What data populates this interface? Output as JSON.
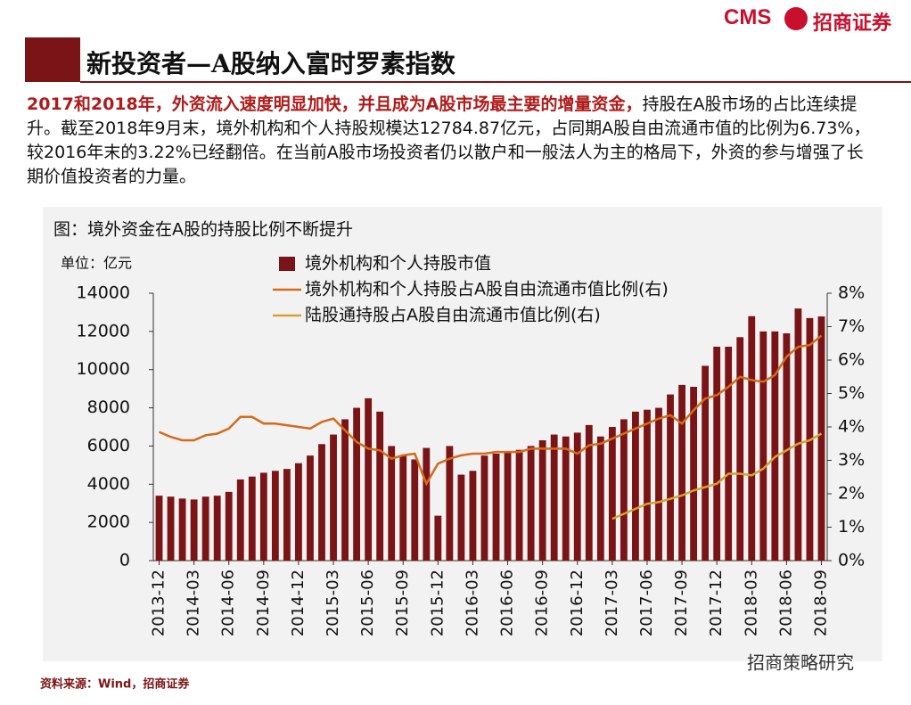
{
  "header": {
    "logo": "CMS",
    "company": "招商证券",
    "title": "新投资者—A股纳入富时罗素指数"
  },
  "paragraph": {
    "lead": "2017和2018年，外资流入速度明显加快，并且成为A股市场最主要的增量资金，",
    "body": "持股在A股市场的占比连续提升。截至2018年9月末，境外机构和个人持股规模达12784.87亿元，占同期A股自由流通市值的比例为6.73%，较2016年末的3.22%已经翻倍。在当前A股市场投资者仍以散户和一般法人为主的格局下，外资的参与增强了长期价值投资者的力量。"
  },
  "chart_data": {
    "type": "bar-line",
    "title": "图：境外资金在A股的持股比例不断提升",
    "y_label": "单位：亿元",
    "categories": [
      "2013-12",
      null,
      null,
      "2014-03",
      null,
      null,
      "2014-06",
      null,
      null,
      "2014-09",
      null,
      null,
      "2014-12",
      null,
      null,
      "2015-03",
      null,
      null,
      "2015-06",
      null,
      null,
      "2015-09",
      null,
      null,
      "2015-12",
      null,
      null,
      "2016-03",
      null,
      null,
      "2016-06",
      null,
      null,
      "2016-09",
      null,
      null,
      "2016-12",
      null,
      null,
      "2017-03",
      null,
      null,
      "2017-06",
      null,
      null,
      "2017-09",
      null,
      null,
      "2017-12",
      null,
      null,
      "2018-03",
      null,
      null,
      "2018-06",
      null,
      null,
      "2018-09"
    ],
    "series": [
      {
        "name": "境外机构和个人持股市值",
        "color": "#7b1416",
        "kind": "bar",
        "values": [
          3400,
          3350,
          3250,
          3200,
          3350,
          3400,
          3600,
          4250,
          4400,
          4600,
          4700,
          4800,
          5100,
          5500,
          6100,
          6600,
          7400,
          8000,
          8500,
          7800,
          6000,
          5500,
          5300,
          5900,
          2350,
          6000,
          4500,
          4700,
          5500,
          5600,
          5700,
          5800,
          6000,
          6300,
          6600,
          6500,
          6700,
          7100,
          6500,
          7000,
          7400,
          7800,
          7900,
          8000,
          8700,
          9200,
          9100,
          10200,
          11200,
          11200,
          11700,
          12800,
          12000,
          12000,
          11900,
          13200,
          12700,
          12784.87
        ]
      },
      {
        "name": "境外机构和个人持股占A股自由流通市值比例(右)",
        "color": "#d46a1a",
        "kind": "line",
        "axis": "y2",
        "values": [
          3.85,
          3.7,
          3.6,
          3.6,
          3.75,
          3.8,
          3.95,
          4.3,
          4.3,
          4.1,
          4.1,
          4.05,
          4.0,
          3.95,
          4.15,
          4.25,
          3.9,
          3.55,
          3.35,
          3.3,
          3.05,
          3.15,
          3.2,
          2.3,
          2.9,
          3.05,
          3.15,
          3.2,
          3.2,
          3.25,
          3.25,
          3.25,
          3.35,
          3.35,
          3.35,
          3.35,
          3.2,
          3.45,
          3.5,
          3.65,
          3.8,
          3.95,
          4.1,
          4.25,
          4.35,
          4.1,
          4.5,
          4.85,
          4.95,
          5.2,
          5.5,
          5.4,
          5.35,
          5.55,
          6.1,
          6.4,
          6.45,
          6.73
        ]
      },
      {
        "name": "陆股通持股占A股自由流通市值比例(右)",
        "color": "#d9a030",
        "kind": "line",
        "axis": "y2",
        "values": [
          null,
          null,
          null,
          null,
          null,
          null,
          null,
          null,
          null,
          null,
          null,
          null,
          null,
          null,
          null,
          null,
          null,
          null,
          null,
          null,
          null,
          null,
          null,
          null,
          null,
          null,
          null,
          null,
          null,
          null,
          null,
          null,
          null,
          null,
          null,
          null,
          null,
          null,
          null,
          1.25,
          1.4,
          1.55,
          1.7,
          1.75,
          1.85,
          1.95,
          2.1,
          2.2,
          2.3,
          2.6,
          2.6,
          2.55,
          2.75,
          3.1,
          3.3,
          3.5,
          3.6,
          3.8
        ]
      }
    ],
    "ylim": [
      0,
      14000
    ],
    "yticks": [
      0,
      2000,
      4000,
      6000,
      8000,
      10000,
      12000,
      14000
    ],
    "y2lim": [
      0,
      8
    ],
    "y2ticks": [
      {
        "value": 0,
        "label": "0%"
      },
      {
        "value": 1,
        "label": "1%"
      },
      {
        "value": 2,
        "label": "2%"
      },
      {
        "value": 3,
        "label": "3%"
      },
      {
        "value": 4,
        "label": "4%"
      },
      {
        "value": 5,
        "label": "5%"
      },
      {
        "value": 6,
        "label": "6%"
      },
      {
        "value": 7,
        "label": "7%"
      },
      {
        "value": 8,
        "label": "8%"
      }
    ]
  },
  "footer": {
    "source": "资料来源：Wind，招商证券",
    "watermark": "招商策略研究"
  }
}
